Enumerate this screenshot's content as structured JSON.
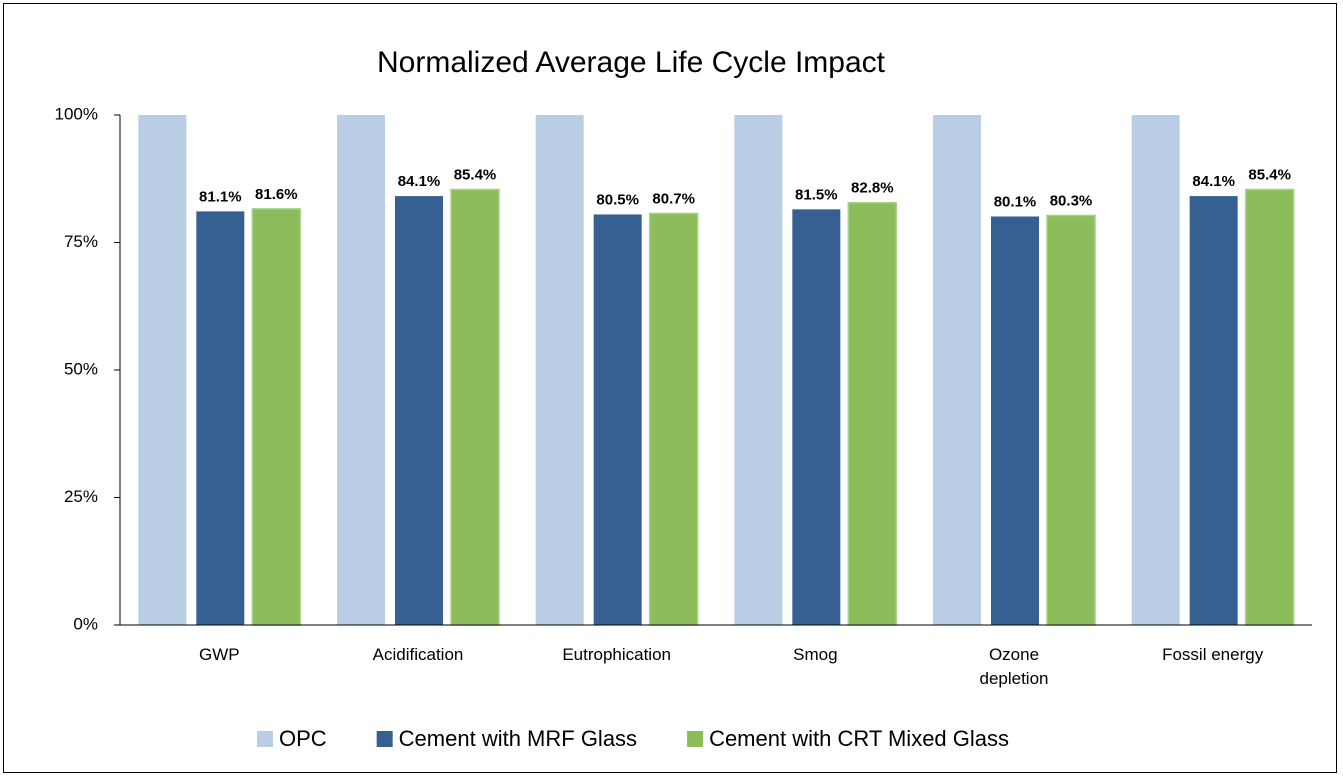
{
  "chart_data": {
    "type": "bar",
    "title": "Normalized Average Life Cycle Impact",
    "categories": [
      "GWP",
      "Acidification",
      "Eutrophication",
      "Smog",
      "Ozone depletion",
      "Fossil energy"
    ],
    "series": [
      {
        "name": "OPC",
        "color": "#b9cde5",
        "values": [
          100,
          100,
          100,
          100,
          100,
          100
        ]
      },
      {
        "name": "Cement with MRF Glass",
        "color": "#376092",
        "values": [
          81.1,
          84.1,
          80.5,
          81.5,
          80.1,
          84.1
        ],
        "value_labels": [
          "81.1%",
          "84.1%",
          "80.5%",
          "81.5%",
          "80.1%",
          "84.1%"
        ]
      },
      {
        "name": "Cement with CRT Mixed Glass",
        "color": "#8cbd5a",
        "values": [
          81.6,
          85.4,
          80.7,
          82.8,
          80.3,
          85.4
        ],
        "value_labels": [
          "81.6%",
          "85.4%",
          "80.7%",
          "82.8%",
          "80.3%",
          "85.4%"
        ]
      }
    ],
    "ylim": [
      0,
      100
    ],
    "yticks": [
      {
        "value": 0,
        "label": "0%"
      },
      {
        "value": 25,
        "label": "25%"
      },
      {
        "value": 50,
        "label": "50%"
      },
      {
        "value": 75,
        "label": "75%"
      },
      {
        "value": 100,
        "label": "100%"
      }
    ],
    "legend": "bottom"
  }
}
